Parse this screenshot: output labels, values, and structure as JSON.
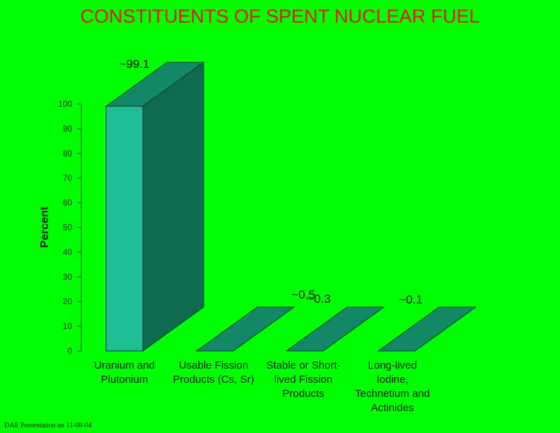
{
  "title": "CONSTITUENTS OF SPENT NUCLEAR FUEL",
  "footer": "DAE Presentation on 11-08-04",
  "chart_data": {
    "type": "bar",
    "title": "CONSTITUENTS OF SPENT NUCLEAR FUEL",
    "ylabel": "Percent",
    "xlabel": "",
    "ylim": [
      0,
      100
    ],
    "yticks": [
      0,
      10,
      20,
      30,
      40,
      50,
      60,
      70,
      80,
      90,
      100
    ],
    "categories": [
      [
        "Uranium and",
        "Plutonium"
      ],
      [
        "Usable Fission",
        "Products (Cs, Sr)"
      ],
      [
        "Stable or Short-",
        "lived Fission",
        "Products"
      ],
      [
        "Long-lived",
        "Iodine,",
        "Technetium and",
        "Actinides"
      ]
    ],
    "values": [
      99.1,
      0.5,
      0.3,
      0.1
    ],
    "data_labels": [
      "~99.1",
      "~0.5",
      "~0.3",
      "~0.1"
    ],
    "bar_colors": {
      "front": "#1fbf96",
      "side": "#0f6b50",
      "top": "#138866",
      "edge": "#0a3b2c"
    },
    "grid": false,
    "legend": "none"
  }
}
